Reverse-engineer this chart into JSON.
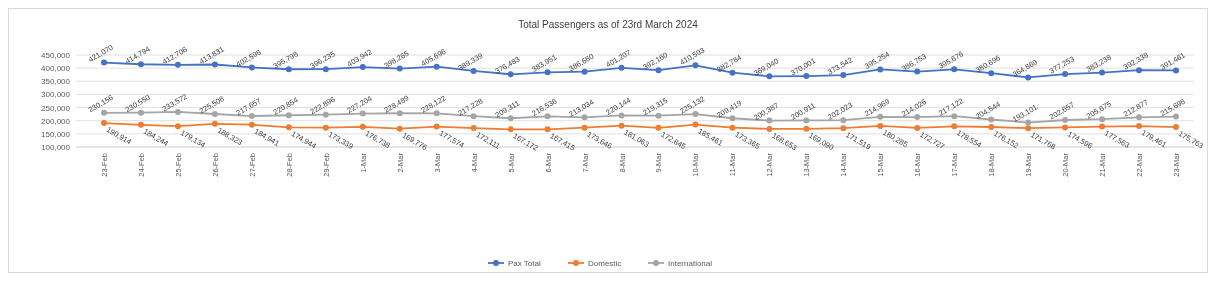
{
  "chart_data": {
    "type": "line",
    "title": "Total Passengers as of 23rd March 2024",
    "categories": [
      "23-Feb",
      "24-Feb",
      "25-Feb",
      "26-Feb",
      "27-Feb",
      "28-Feb",
      "29-Feb",
      "1-Mar",
      "2-Mar",
      "3-Mar",
      "4-Mar",
      "5-Mar",
      "6-Mar",
      "7-Mar",
      "8-Mar",
      "9-Mar",
      "10-Mar",
      "11-Mar",
      "12-Mar",
      "13-Mar",
      "14-Mar",
      "15-Mar",
      "16-Mar",
      "17-Mar",
      "18-Mar",
      "19-Mar",
      "20-Mar",
      "21-Mar",
      "22-Mar",
      "23-Mar"
    ],
    "series": [
      {
        "name": "Pax Total",
        "color": "#4472c4",
        "values": [
          421070,
          414794,
          412706,
          413831,
          402598,
          395798,
          396235,
          403942,
          398265,
          405696,
          389339,
          376483,
          383951,
          386680,
          401207,
          392160,
          410593,
          382784,
          369040,
          370001,
          373542,
          395254,
          386753,
          395676,
          380696,
          364869,
          377253,
          383238,
          392338,
          391461
        ],
        "value_labels": [
          "421,070",
          "414,794",
          "412,706",
          "413,831",
          "402,598",
          "395,798",
          "396,235",
          "403,942",
          "398,265",
          "405,696",
          "389,339",
          "376,483",
          "383,951",
          "386,680",
          "401,207",
          "392,160",
          "410,593",
          "382,784",
          "369,040",
          "370,001",
          "373,542",
          "395,254",
          "386,753",
          "395,676",
          "380,696",
          "364,869",
          "377,253",
          "383,238",
          "392,338",
          "391,461"
        ]
      },
      {
        "name": "Domestic",
        "color": "#ed7d31",
        "values": [
          190914,
          184244,
          179134,
          188323,
          184941,
          174944,
          173339,
          176738,
          169776,
          177574,
          172111,
          167172,
          167415,
          173646,
          181063,
          172845,
          185461,
          173365,
          168653,
          169090,
          171519,
          180285,
          172727,
          178554,
          176152,
          171768,
          174596,
          177563,
          179461,
          175763
        ],
        "value_labels": [
          "190,914",
          "184,244",
          "179,134",
          "188,323",
          "184,941",
          "174,944",
          "173,339",
          "176,738",
          "169,776",
          "177,574",
          "172,111",
          "167,172",
          "167,415",
          "173,646",
          "181,063",
          "172,845",
          "185,461",
          "173,365",
          "168,653",
          "169,090",
          "171,519",
          "180,285",
          "172,727",
          "178,554",
          "176,152",
          "171,768",
          "174,596",
          "177,563",
          "179,461",
          "175,763"
        ]
      },
      {
        "name": "International",
        "color": "#a5a5a5",
        "values": [
          230156,
          230550,
          233572,
          225508,
          217657,
          220854,
          222896,
          227204,
          228489,
          228122,
          217228,
          209311,
          216536,
          213034,
          220144,
          219315,
          225132,
          209419,
          200387,
          200911,
          202023,
          214969,
          214026,
          217122,
          204544,
          193101,
          202657,
          205675,
          212877,
          215698
        ],
        "value_labels": [
          "230,156",
          "230,550",
          "233,572",
          "225,508",
          "217,657",
          "220,854",
          "222,896",
          "227,204",
          "228,489",
          "228,122",
          "217,228",
          "209,311",
          "216,536",
          "213,034",
          "220,144",
          "219,315",
          "225,132",
          "209,419",
          "200,387",
          "200,911",
          "202,023",
          "214,969",
          "214,026",
          "217,122",
          "204,544",
          "193,101",
          "202,657",
          "205,675",
          "212,877",
          "215,698"
        ]
      }
    ],
    "ylim": [
      100000,
      450000
    ],
    "yticks": [
      {
        "value": 100000,
        "label": "100,000"
      },
      {
        "value": 150000,
        "label": "150,000"
      },
      {
        "value": 200000,
        "label": "200,000"
      },
      {
        "value": 250000,
        "label": "250,000"
      },
      {
        "value": 300000,
        "label": "300,000"
      },
      {
        "value": 350000,
        "label": "350,000"
      },
      {
        "value": 400000,
        "label": "400,000"
      },
      {
        "value": 450000,
        "label": "450,000"
      }
    ],
    "grid": "y",
    "legend": "bottom",
    "marker": "circle",
    "line_style": "solid"
  }
}
